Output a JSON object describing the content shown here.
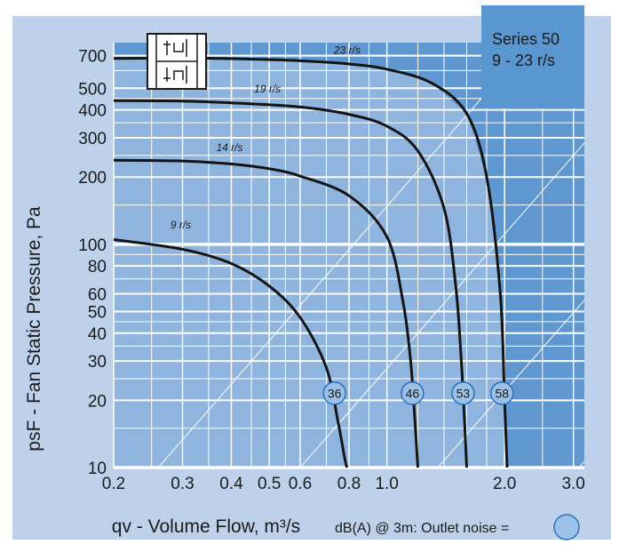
{
  "colors": {
    "frame": "#bdd2ea",
    "series_box": "#5a96cf",
    "operating_area": "#8fb5df",
    "plot_bg": "#5f97d1",
    "grid": "#ffffff",
    "curve": "#141414",
    "badge": "#9cc1e8"
  },
  "series_box": {
    "line1": "Series 50",
    "line2": "9 - 23 r/s"
  },
  "legend_note": {
    "text": "dB(A) @ 3m:  Outlet noise  =",
    "icon": "circle-swatch-icon"
  },
  "chart_data": {
    "type": "line",
    "x_scale": "log",
    "y_scale": "log",
    "xlim": [
      0.2,
      3.2
    ],
    "ylim": [
      10,
      800
    ],
    "grid": true,
    "xlabel": "qv - Volume Flow, m³/s",
    "ylabel": "psF - Fan Static Pressure, Pa",
    "x_ticks": [
      "0.2",
      "0.3",
      "0.4",
      "0.5",
      "0.6",
      "0.8",
      "1.0",
      "2.0",
      "3.0"
    ],
    "x_tick_values": [
      0.2,
      0.3,
      0.4,
      0.5,
      0.6,
      0.8,
      1.0,
      2.0,
      3.0
    ],
    "y_ticks": [
      "700",
      "500",
      "400",
      "300",
      "200",
      "100",
      "80",
      "60",
      "50",
      "40",
      "30",
      "20",
      "10"
    ],
    "y_tick_values": [
      700,
      500,
      400,
      300,
      200,
      100,
      80,
      60,
      50,
      40,
      30,
      20,
      10
    ],
    "series": [
      {
        "name": "9 r/s",
        "noise_dba": "36",
        "x": [
          0.2,
          0.3,
          0.4,
          0.5,
          0.6,
          0.7,
          0.75,
          0.78,
          0.79
        ],
        "y": [
          105,
          95,
          82,
          65,
          47,
          28,
          16,
          11,
          10
        ]
      },
      {
        "name": "14 r/s",
        "noise_dba": "46",
        "x": [
          0.2,
          0.3,
          0.4,
          0.5,
          0.6,
          0.8,
          1.0,
          1.1,
          1.15,
          1.18,
          1.2
        ],
        "y": [
          238,
          236,
          229,
          218,
          202,
          165,
          108,
          55,
          30,
          16,
          10
        ]
      },
      {
        "name": "19 r/s",
        "noise_dba": "53",
        "x": [
          0.2,
          0.3,
          0.4,
          0.6,
          0.8,
          1.0,
          1.2,
          1.4,
          1.5,
          1.55,
          1.58,
          1.6
        ],
        "y": [
          440,
          438,
          430,
          412,
          382,
          338,
          262,
          145,
          65,
          30,
          16,
          10
        ]
      },
      {
        "name": "23 r/s",
        "noise_dba": "58",
        "x": [
          0.2,
          0.3,
          0.4,
          0.6,
          0.8,
          1.0,
          1.3,
          1.6,
          1.8,
          1.95,
          2.0,
          2.03
        ],
        "y": [
          680,
          682,
          678,
          664,
          642,
          608,
          528,
          385,
          200,
          60,
          20,
          10
        ]
      }
    ]
  }
}
